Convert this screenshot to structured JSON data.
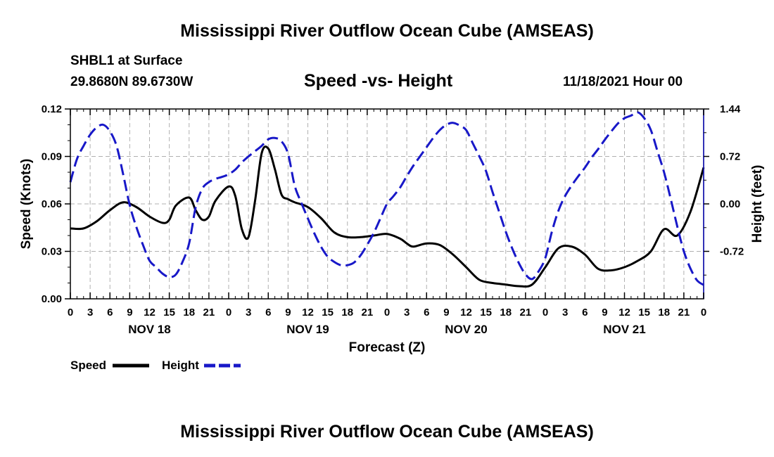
{
  "header": {
    "title": "Mississippi River Outflow Ocean Cube (AMSEAS)",
    "station": "SHBL1 at Surface",
    "coords": "29.8680N  89.6730W",
    "subtitle": "Speed -vs- Height",
    "datetime": "11/18/2021 Hour 00"
  },
  "footer": {
    "title": "Mississippi River Outflow Ocean Cube (AMSEAS)"
  },
  "chart_data": {
    "type": "line",
    "xlabel": "Forecast (Z)",
    "ylabel": "Speed (Knots)",
    "y2label": "Height (feet)",
    "x_range_hours": [
      0,
      96
    ],
    "ylim": [
      0,
      0.12
    ],
    "y2lim": [
      -1.44,
      1.44
    ],
    "yticks": [
      "0.00",
      "0.03",
      "0.06",
      "0.09",
      "0.12"
    ],
    "y2ticks": [
      "-0.72",
      "0.00",
      "0.72",
      "1.44"
    ],
    "xticks": [
      "0",
      "3",
      "6",
      "9",
      "12",
      "15",
      "18",
      "21",
      "0",
      "3",
      "6",
      "9",
      "12",
      "15",
      "18",
      "21",
      "0",
      "3",
      "6",
      "9",
      "12",
      "15",
      "18",
      "21",
      "0",
      "3",
      "6",
      "9",
      "12",
      "15",
      "18",
      "21",
      "0"
    ],
    "day_labels": [
      "NOV 18",
      "NOV 19",
      "NOV 20",
      "NOV 21"
    ],
    "grid": true,
    "legend": [
      {
        "name": "Speed",
        "color": "#000000",
        "style": "solid"
      },
      {
        "name": "Height",
        "color": "#1818c8",
        "style": "dashed"
      }
    ],
    "series": [
      {
        "name": "Speed",
        "axis": "left",
        "color": "#000000",
        "x": [
          0,
          2,
          4,
          6,
          8,
          10,
          12,
          14,
          15,
          16,
          18,
          19,
          20,
          21,
          22,
          24,
          25,
          26,
          27,
          28,
          29,
          30,
          31,
          32,
          33,
          34,
          36,
          38,
          40,
          42,
          44,
          46,
          48,
          50,
          51,
          52,
          54,
          56,
          58,
          60,
          62,
          64,
          65,
          66,
          68,
          70,
          72,
          74,
          76,
          78,
          80,
          82,
          84,
          86,
          88,
          90,
          92,
          94,
          96
        ],
        "values": [
          0.0445,
          0.0445,
          0.049,
          0.056,
          0.061,
          0.058,
          0.052,
          0.048,
          0.05,
          0.059,
          0.064,
          0.056,
          0.05,
          0.052,
          0.062,
          0.071,
          0.065,
          0.044,
          0.039,
          0.062,
          0.092,
          0.095,
          0.082,
          0.066,
          0.063,
          0.061,
          0.058,
          0.051,
          0.042,
          0.039,
          0.039,
          0.04,
          0.041,
          0.038,
          0.035,
          0.033,
          0.035,
          0.034,
          0.028,
          0.02,
          0.012,
          0.01,
          0.0095,
          0.009,
          0.008,
          0.009,
          0.02,
          0.032,
          0.033,
          0.028,
          0.019,
          0.018,
          0.02,
          0.024,
          0.03,
          0.044,
          0.04,
          0.055,
          0.083
        ]
      },
      {
        "name": "Height",
        "axis": "right",
        "color": "#1818c8",
        "x": [
          0,
          1,
          2,
          3,
          4,
          5,
          6,
          7,
          8,
          9,
          10,
          11,
          12,
          13,
          14,
          15,
          16,
          17,
          18,
          19,
          20,
          21,
          22,
          23,
          24,
          25,
          26,
          27,
          28,
          29,
          30,
          31,
          32,
          33,
          34,
          35,
          36,
          37,
          38,
          39,
          40,
          41,
          42,
          43,
          44,
          45,
          46,
          47,
          48,
          49,
          50,
          51,
          52,
          53,
          54,
          55,
          56,
          57,
          58,
          59,
          60,
          61,
          62,
          63,
          64,
          65,
          66,
          67,
          68,
          69,
          70,
          71,
          72,
          73,
          74,
          75,
          76,
          77,
          78,
          79,
          80,
          81,
          82,
          83,
          84,
          85,
          86,
          87,
          88,
          89,
          90,
          91,
          92,
          93,
          94,
          95,
          96
        ],
        "values": [
          0.33,
          0.68,
          0.88,
          1.05,
          1.16,
          1.2,
          1.1,
          0.88,
          0.45,
          -0.02,
          -0.35,
          -0.62,
          -0.86,
          -0.96,
          -1.06,
          -1.11,
          -1.07,
          -0.88,
          -0.6,
          -0.05,
          0.23,
          0.33,
          0.38,
          0.41,
          0.45,
          0.52,
          0.63,
          0.72,
          0.8,
          0.88,
          0.98,
          1.0,
          0.95,
          0.76,
          0.28,
          0.02,
          -0.22,
          -0.45,
          -0.65,
          -0.8,
          -0.88,
          -0.93,
          -0.93,
          -0.89,
          -0.78,
          -0.62,
          -0.44,
          -0.22,
          0.0,
          0.12,
          0.25,
          0.42,
          0.58,
          0.72,
          0.86,
          1.0,
          1.12,
          1.2,
          1.23,
          1.19,
          1.12,
          0.92,
          0.72,
          0.5,
          0.18,
          -0.12,
          -0.42,
          -0.68,
          -0.9,
          -1.07,
          -1.14,
          -1.02,
          -0.82,
          -0.42,
          -0.1,
          0.12,
          0.28,
          0.42,
          0.55,
          0.7,
          0.83,
          0.97,
          1.1,
          1.22,
          1.3,
          1.34,
          1.39,
          1.3,
          1.12,
          0.8,
          0.48,
          0.08,
          -0.34,
          -0.72,
          -0.98,
          -1.16,
          -1.23
        ]
      }
    ]
  }
}
